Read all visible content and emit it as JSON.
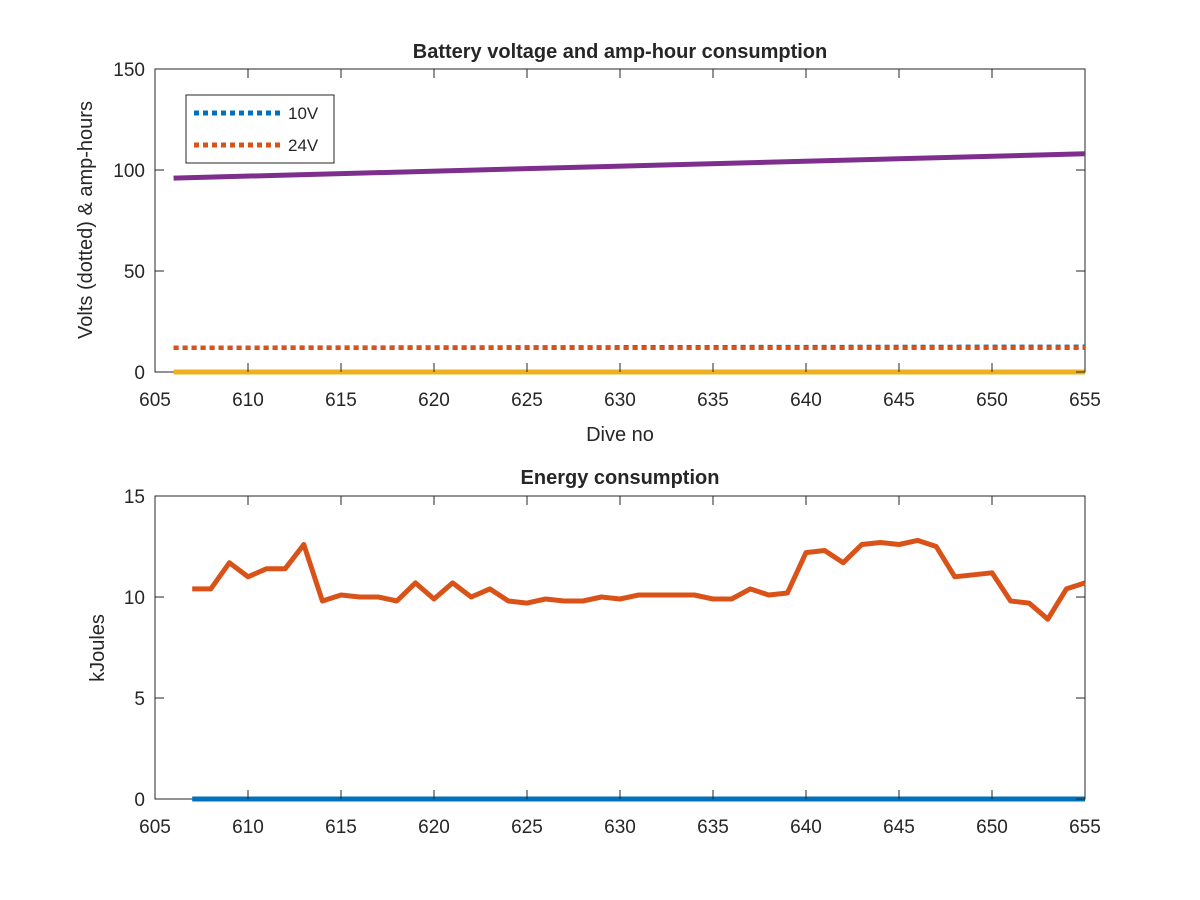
{
  "chart_data": [
    {
      "type": "line",
      "title": "Battery voltage and amp-hour consumption",
      "xlabel": "Dive no",
      "ylabel": "Volts (dotted) & amp-hours",
      "xlim": [
        605,
        655
      ],
      "ylim": [
        0,
        150
      ],
      "xticks": [
        605,
        610,
        615,
        620,
        625,
        630,
        635,
        640,
        645,
        650,
        655
      ],
      "yticks": [
        0,
        50,
        100,
        150
      ],
      "grid": false,
      "legend": "top-left",
      "series": [
        {
          "name": "10V",
          "style": "dotted",
          "color": "#0072BD",
          "x": [
            606,
            655
          ],
          "y": [
            12,
            12.5
          ]
        },
        {
          "name": "24V",
          "style": "dotted",
          "color": "#D95319",
          "x": [
            606,
            655
          ],
          "y": [
            12,
            12
          ]
        },
        {
          "style": "solid",
          "color": "#7E2F8E",
          "x": [
            606,
            655
          ],
          "y": [
            96,
            108
          ]
        },
        {
          "style": "solid",
          "color": "#EDB120",
          "x": [
            606,
            655
          ],
          "y": [
            0,
            0
          ]
        }
      ]
    },
    {
      "type": "line",
      "title": "Energy consumption",
      "xlabel": "",
      "ylabel": "kJoules",
      "xlim": [
        605,
        655
      ],
      "ylim": [
        0,
        15
      ],
      "xticks": [
        605,
        610,
        615,
        620,
        625,
        630,
        635,
        640,
        645,
        650,
        655
      ],
      "yticks": [
        0,
        5,
        10,
        15
      ],
      "grid": false,
      "series": [
        {
          "style": "solid",
          "color": "#D95319",
          "x": [
            607,
            608,
            609,
            610,
            611,
            612,
            613,
            614,
            615,
            616,
            617,
            618,
            619,
            620,
            621,
            622,
            623,
            624,
            625,
            626,
            627,
            628,
            629,
            630,
            631,
            632,
            633,
            634,
            635,
            636,
            637,
            638,
            639,
            640,
            641,
            642,
            643,
            644,
            645,
            646,
            647,
            648,
            649,
            650,
            651,
            652,
            653,
            654,
            655
          ],
          "y": [
            10.4,
            10.4,
            11.7,
            11.0,
            11.4,
            11.4,
            12.6,
            9.8,
            10.1,
            10.0,
            10.0,
            9.8,
            10.7,
            9.9,
            10.7,
            10.0,
            10.4,
            9.8,
            9.7,
            9.9,
            9.8,
            9.8,
            10.0,
            9.9,
            10.1,
            10.1,
            10.1,
            10.1,
            9.9,
            9.9,
            10.4,
            10.1,
            10.2,
            12.2,
            12.3,
            11.7,
            12.6,
            12.7,
            12.6,
            12.8,
            12.5,
            11.0,
            11.1,
            11.2,
            9.8,
            9.7,
            8.9,
            10.4,
            10.7
          ]
        },
        {
          "style": "solid",
          "color": "#0072BD",
          "x": [
            607,
            655
          ],
          "y": [
            0,
            0
          ]
        }
      ]
    }
  ]
}
